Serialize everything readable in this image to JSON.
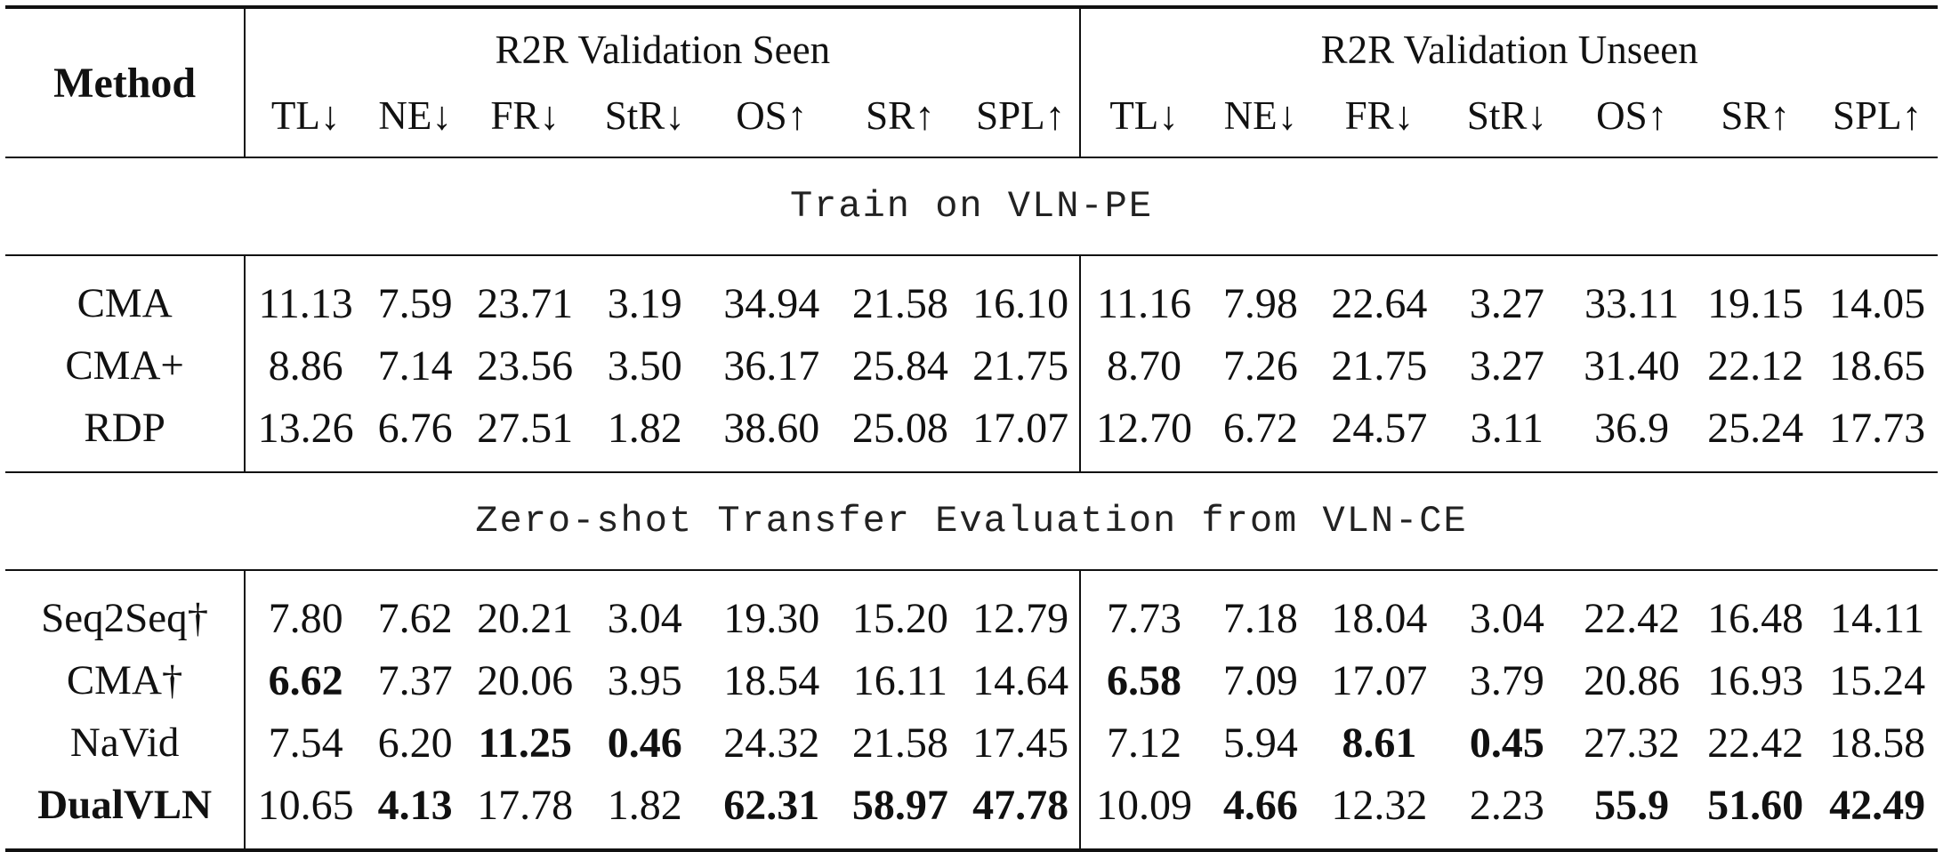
{
  "table": {
    "method_header": "Method",
    "groups": [
      "R2R Validation Seen",
      "R2R Validation Unseen"
    ],
    "columns": [
      "TL↓",
      "NE↓",
      "FR↓",
      "StR↓",
      "OS↑",
      "SR↑",
      "SPL↑"
    ],
    "sections": [
      {
        "title": "Train on VLN-PE",
        "rows": [
          {
            "method": "CMA",
            "method_bold": false,
            "seen": [
              "11.13",
              "7.59",
              "23.71",
              "3.19",
              "34.94",
              "21.58",
              "16.10"
            ],
            "unseen": [
              "11.16",
              "7.98",
              "22.64",
              "3.27",
              "33.11",
              "19.15",
              "14.05"
            ],
            "seen_bold": [
              false,
              false,
              false,
              false,
              false,
              false,
              false
            ],
            "unseen_bold": [
              false,
              false,
              false,
              false,
              false,
              false,
              false
            ]
          },
          {
            "method": "CMA+",
            "method_bold": false,
            "seen": [
              "8.86",
              "7.14",
              "23.56",
              "3.50",
              "36.17",
              "25.84",
              "21.75"
            ],
            "unseen": [
              "8.70",
              "7.26",
              "21.75",
              "3.27",
              "31.40",
              "22.12",
              "18.65"
            ],
            "seen_bold": [
              false,
              false,
              false,
              false,
              false,
              false,
              false
            ],
            "unseen_bold": [
              false,
              false,
              false,
              false,
              false,
              false,
              false
            ]
          },
          {
            "method": "RDP",
            "method_bold": false,
            "seen": [
              "13.26",
              "6.76",
              "27.51",
              "1.82",
              "38.60",
              "25.08",
              "17.07"
            ],
            "unseen": [
              "12.70",
              "6.72",
              "24.57",
              "3.11",
              "36.9",
              "25.24",
              "17.73"
            ],
            "seen_bold": [
              false,
              false,
              false,
              false,
              false,
              false,
              false
            ],
            "unseen_bold": [
              false,
              false,
              false,
              false,
              false,
              false,
              false
            ]
          }
        ]
      },
      {
        "title": "Zero-shot Transfer Evaluation from VLN-CE",
        "rows": [
          {
            "method": "Seq2Seq†",
            "method_bold": false,
            "seen": [
              "7.80",
              "7.62",
              "20.21",
              "3.04",
              "19.30",
              "15.20",
              "12.79"
            ],
            "unseen": [
              "7.73",
              "7.18",
              "18.04",
              "3.04",
              "22.42",
              "16.48",
              "14.11"
            ],
            "seen_bold": [
              false,
              false,
              false,
              false,
              false,
              false,
              false
            ],
            "unseen_bold": [
              false,
              false,
              false,
              false,
              false,
              false,
              false
            ]
          },
          {
            "method": "CMA†",
            "method_bold": false,
            "seen": [
              "6.62",
              "7.37",
              "20.06",
              "3.95",
              "18.54",
              "16.11",
              "14.64"
            ],
            "unseen": [
              "6.58",
              "7.09",
              "17.07",
              "3.79",
              "20.86",
              "16.93",
              "15.24"
            ],
            "seen_bold": [
              true,
              false,
              false,
              false,
              false,
              false,
              false
            ],
            "unseen_bold": [
              true,
              false,
              false,
              false,
              false,
              false,
              false
            ]
          },
          {
            "method": "NaVid",
            "method_bold": false,
            "seen": [
              "7.54",
              "6.20",
              "11.25",
              "0.46",
              "24.32",
              "21.58",
              "17.45"
            ],
            "unseen": [
              "7.12",
              "5.94",
              "8.61",
              "0.45",
              "27.32",
              "22.42",
              "18.58"
            ],
            "seen_bold": [
              false,
              false,
              true,
              true,
              false,
              false,
              false
            ],
            "unseen_bold": [
              false,
              false,
              true,
              true,
              false,
              false,
              false
            ]
          },
          {
            "method": "DualVLN",
            "method_bold": true,
            "seen": [
              "10.65",
              "4.13",
              "17.78",
              "1.82",
              "62.31",
              "58.97",
              "47.78"
            ],
            "unseen": [
              "10.09",
              "4.66",
              "12.32",
              "2.23",
              "55.9",
              "51.60",
              "42.49"
            ],
            "seen_bold": [
              false,
              true,
              false,
              false,
              true,
              true,
              true
            ],
            "unseen_bold": [
              false,
              true,
              false,
              false,
              true,
              true,
              true
            ]
          }
        ]
      }
    ]
  }
}
